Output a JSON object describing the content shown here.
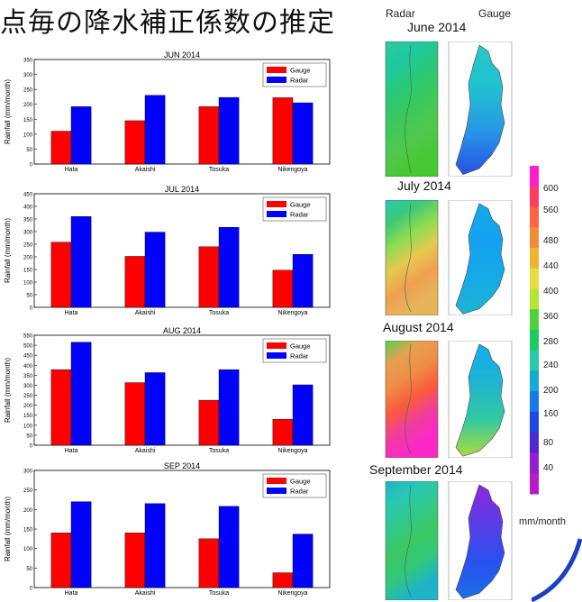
{
  "slide": {
    "title": "点毎の降水補正係数の推定",
    "map_header_radar": "Radar",
    "map_header_gauge": "Gauge"
  },
  "colors": {
    "gauge": "#ff0000",
    "radar": "#0000ff"
  },
  "chart_data": [
    {
      "type": "bar",
      "title": "JUN 2014",
      "ylabel": "Rainfall (mm/month)",
      "categories": [
        "Hata",
        "Akaishi",
        "Tosuka",
        "Nikengoya"
      ],
      "ylim": [
        0,
        350
      ],
      "yticks": [
        0,
        50,
        100,
        150,
        200,
        250,
        300,
        350
      ],
      "legend": "top-right",
      "series": [
        {
          "name": "Gauge",
          "values": [
            110,
            145,
            192,
            222
          ]
        },
        {
          "name": "Radar",
          "values": [
            192,
            230,
            223,
            205
          ]
        }
      ]
    },
    {
      "type": "bar",
      "title": "JUL 2014",
      "ylabel": "Rainfall (mm/month)",
      "categories": [
        "Hata",
        "Akaishi",
        "Tosuka",
        "Nikengoya"
      ],
      "ylim": [
        0,
        450
      ],
      "yticks": [
        0,
        50,
        100,
        150,
        200,
        250,
        300,
        350,
        400,
        450
      ],
      "legend": "top-right",
      "series": [
        {
          "name": "Gauge",
          "values": [
            258,
            202,
            240,
            147
          ]
        },
        {
          "name": "Radar",
          "values": [
            360,
            298,
            317,
            210
          ]
        }
      ]
    },
    {
      "type": "bar",
      "title": "AUG 2014",
      "ylabel": "Rainfall (mm/month)",
      "categories": [
        "Hata",
        "Akaishi",
        "Tosuka",
        "Nikengoya"
      ],
      "ylim": [
        0,
        550
      ],
      "yticks": [
        0,
        50,
        100,
        150,
        200,
        250,
        300,
        350,
        400,
        450,
        500,
        550
      ],
      "legend": "top-right",
      "series": [
        {
          "name": "Gauge",
          "values": [
            378,
            313,
            225,
            130
          ]
        },
        {
          "name": "Radar",
          "values": [
            515,
            363,
            378,
            302
          ]
        }
      ]
    },
    {
      "type": "bar",
      "title": "SEP 2014",
      "ylabel": "Rainfall (mm/month)",
      "categories": [
        "Hata",
        "Akaishi",
        "Tosuka",
        "Nikengoya"
      ],
      "ylim": [
        0,
        300
      ],
      "yticks": [
        0,
        50,
        100,
        150,
        200,
        250,
        300
      ],
      "legend": "top-right",
      "series": [
        {
          "name": "Gauge",
          "values": [
            140,
            140,
            125,
            38
          ]
        },
        {
          "name": "Radar",
          "values": [
            220,
            215,
            208,
            137
          ]
        }
      ]
    }
  ],
  "maps": [
    {
      "caption": "June 2014",
      "radar_colors": [
        "#32c8a0",
        "#1ec8a0",
        "#28c878",
        "#3cc85a",
        "#50c850",
        "#46c832"
      ],
      "gauge_colors": [
        "#28c8c8",
        "#20c0d0",
        "#2896e6",
        "#2850e6"
      ]
    },
    {
      "caption": "July 2014",
      "radar_colors": [
        "#28c8b4",
        "#3cc878",
        "#8cdc50",
        "#e6c850",
        "#f0a050",
        "#e6b45a"
      ],
      "gauge_colors": [
        "#14aae6",
        "#14a0f0",
        "#14aae6",
        "#1eb4d2"
      ]
    },
    {
      "caption": "August 2014",
      "radar_colors": [
        "#50d250",
        "#e6a050",
        "#f08c46",
        "#fa5a3c",
        "#f03ca0",
        "#fa28c8"
      ],
      "gauge_colors": [
        "#14aaf0",
        "#1eb4d2",
        "#32c8a0",
        "#aadc3c"
      ]
    },
    {
      "caption": "September  2014",
      "radar_colors": [
        "#1eb4c8",
        "#28c8b4",
        "#32c88c",
        "#3cc864",
        "#32c878",
        "#1eb4c8"
      ],
      "gauge_colors": [
        "#8c28dc",
        "#5a3ce6",
        "#2850f0",
        "#1e6ee6"
      ]
    }
  ],
  "colorbar": {
    "unit": "mm/month",
    "ticks": [
      "600",
      "560",
      "480",
      "440",
      "400",
      "360",
      "280",
      "240",
      "200",
      "160",
      "80",
      "40"
    ],
    "colors": [
      "#ff1ec8",
      "#ff3c64",
      "#ff6446",
      "#f08c32",
      "#f0b432",
      "#e6dc3c",
      "#b4e632",
      "#50d23c",
      "#1ec864",
      "#28c8aa",
      "#14aad2",
      "#1478e6",
      "#1e46e6",
      "#5028d2",
      "#961ecd",
      "#b41ec8"
    ]
  }
}
